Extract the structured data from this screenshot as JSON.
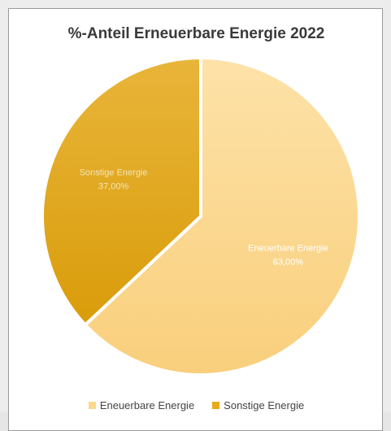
{
  "chart_data": {
    "type": "pie",
    "title": "%-Anteil Erneuerbare Energie 2022",
    "slices": [
      {
        "name": "Eneuerbare Energie",
        "value": 63.0,
        "label_value": "63,00%",
        "color": "#fcd78c"
      },
      {
        "name": "Sonstige Energie",
        "value": 37.0,
        "label_value": "37,00%",
        "color": "#e8ab1a"
      }
    ],
    "legend": {
      "position": "bottom",
      "items": [
        "Eneuerbare Energie",
        "Sonstige Energie"
      ]
    }
  }
}
